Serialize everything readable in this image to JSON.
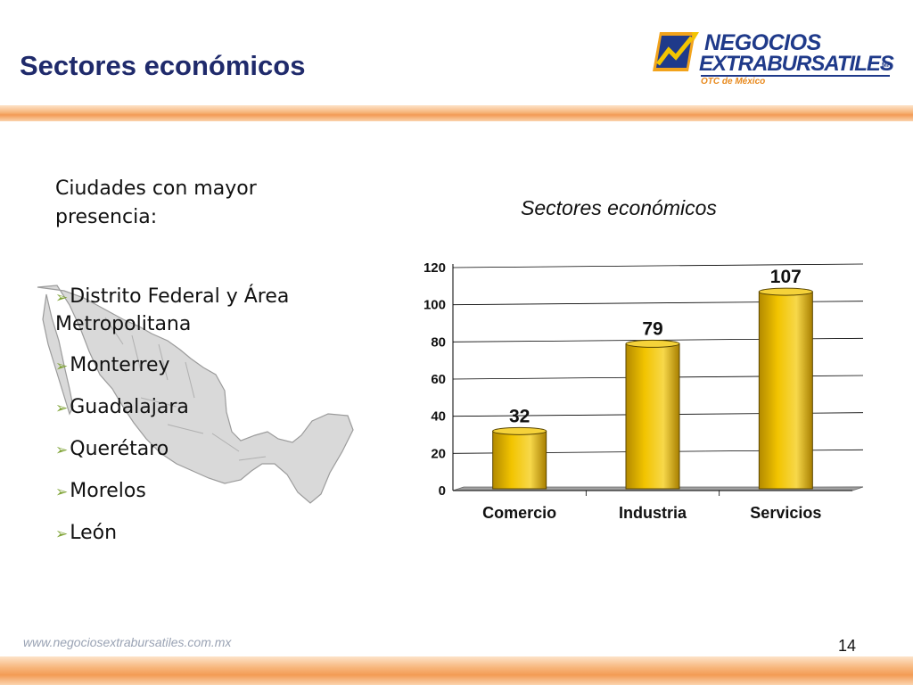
{
  "slide": {
    "title": "Sectores económicos",
    "page_number": "14",
    "footer_url": "www.negociosextrabursatiles.com.mx"
  },
  "logo": {
    "line1": "NEGOCIOS",
    "line2": "EXTRABURSATILES",
    "mark": "MR",
    "subtitle": "OTC de México",
    "icon": "chart-arrow-logo-icon"
  },
  "text": {
    "intro": "Ciudades con mayor presencia:",
    "cities": [
      "Distrito Federal y Área Metropolitana",
      "Monterrey",
      "Guadalajara",
      "Querétaro",
      "Morelos",
      "León"
    ],
    "bullet_icon": "arrow-bullet-icon"
  },
  "map": {
    "icon": "mexico-map-icon"
  },
  "chart_data": {
    "type": "bar",
    "title": "Sectores económicos",
    "categories": [
      "Comercio",
      "Industria",
      "Servicios"
    ],
    "values": [
      32,
      79,
      107
    ],
    "data_labels": [
      "32",
      "79",
      "107"
    ],
    "ylim": [
      0,
      120
    ],
    "yticks": [
      0,
      20,
      40,
      60,
      80,
      100,
      120
    ],
    "grid": true,
    "bar_color": "#f2c400",
    "legend": "none"
  }
}
